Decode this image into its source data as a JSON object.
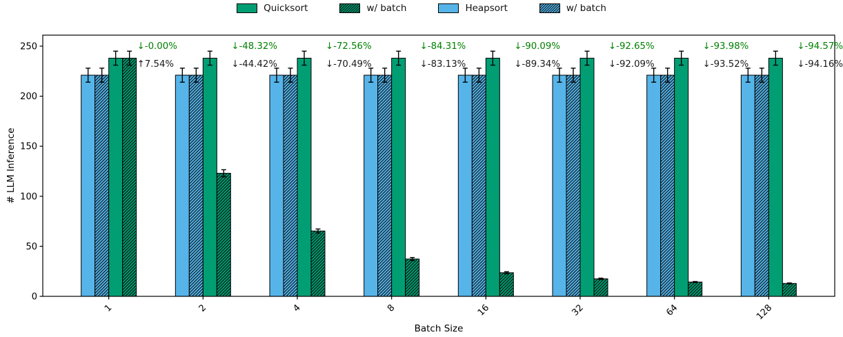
{
  "chart_data": {
    "type": "bar",
    "title": "",
    "xlabel": "Batch Size",
    "ylabel": "# LLM Inference",
    "categories": [
      "1",
      "2",
      "4",
      "8",
      "16",
      "32",
      "64",
      "128"
    ],
    "ylim": [
      0,
      261
    ],
    "yticks": [
      0,
      50,
      100,
      150,
      200,
      250
    ],
    "grid": false,
    "legend_position": "top-center",
    "series": [
      {
        "name": "Heapsort",
        "color": "#56B4E9",
        "hatch": false,
        "values": [
          221,
          221,
          221,
          221,
          221,
          221,
          221,
          221
        ],
        "errors": [
          7,
          7,
          7,
          7,
          7,
          7,
          7,
          7
        ]
      },
      {
        "name": "Heapsort w/ batch",
        "color": "#56B4E9",
        "hatch": true,
        "values": [
          221,
          221,
          221,
          221,
          221,
          221,
          221,
          221
        ],
        "errors": [
          7,
          7,
          7,
          7,
          7,
          7,
          7,
          7
        ]
      },
      {
        "name": "Quicksort",
        "color": "#029E73",
        "hatch": false,
        "values": [
          238,
          238,
          238,
          238,
          238,
          238,
          238,
          238
        ],
        "errors": [
          7,
          7,
          7,
          7,
          7,
          7,
          7,
          7
        ]
      },
      {
        "name": "Quicksort w/ batch",
        "color": "#029E73",
        "hatch": true,
        "values": [
          238,
          123,
          65.3,
          37.3,
          23.6,
          17.5,
          14.3,
          12.9
        ],
        "errors": [
          7,
          3.5,
          2,
          1.5,
          1,
          0.7,
          0.5,
          0.5
        ]
      }
    ],
    "legend": [
      {
        "label": "Quicksort",
        "series": 2
      },
      {
        "label": "w/ batch",
        "series": 3
      },
      {
        "label": "Heapsort",
        "series": 0
      },
      {
        "label": "w/ batch",
        "series": 1
      }
    ],
    "annotations": [
      {
        "category": "1",
        "green": "↓-0.00%",
        "black": "↑7.54%"
      },
      {
        "category": "2",
        "green": "↓-48.32%",
        "black": "↓-44.42%"
      },
      {
        "category": "4",
        "green": "↓-72.56%",
        "black": "↓-70.49%"
      },
      {
        "category": "8",
        "green": "↓-84.31%",
        "black": "↓-83.13%"
      },
      {
        "category": "16",
        "green": "↓-90.09%",
        "black": "↓-89.34%"
      },
      {
        "category": "32",
        "green": "↓-92.65%",
        "black": "↓-92.09%"
      },
      {
        "category": "64",
        "green": "↓-93.98%",
        "black": "↓-93.52%"
      },
      {
        "category": "128",
        "green": "↓-94.57%",
        "black": "↓-94.16%"
      }
    ],
    "colors": {
      "annotation_green": "#008000",
      "annotation_black": "#1a1a1a",
      "axis": "#000000",
      "error_bar": "#000000",
      "background": "#ffffff"
    }
  }
}
